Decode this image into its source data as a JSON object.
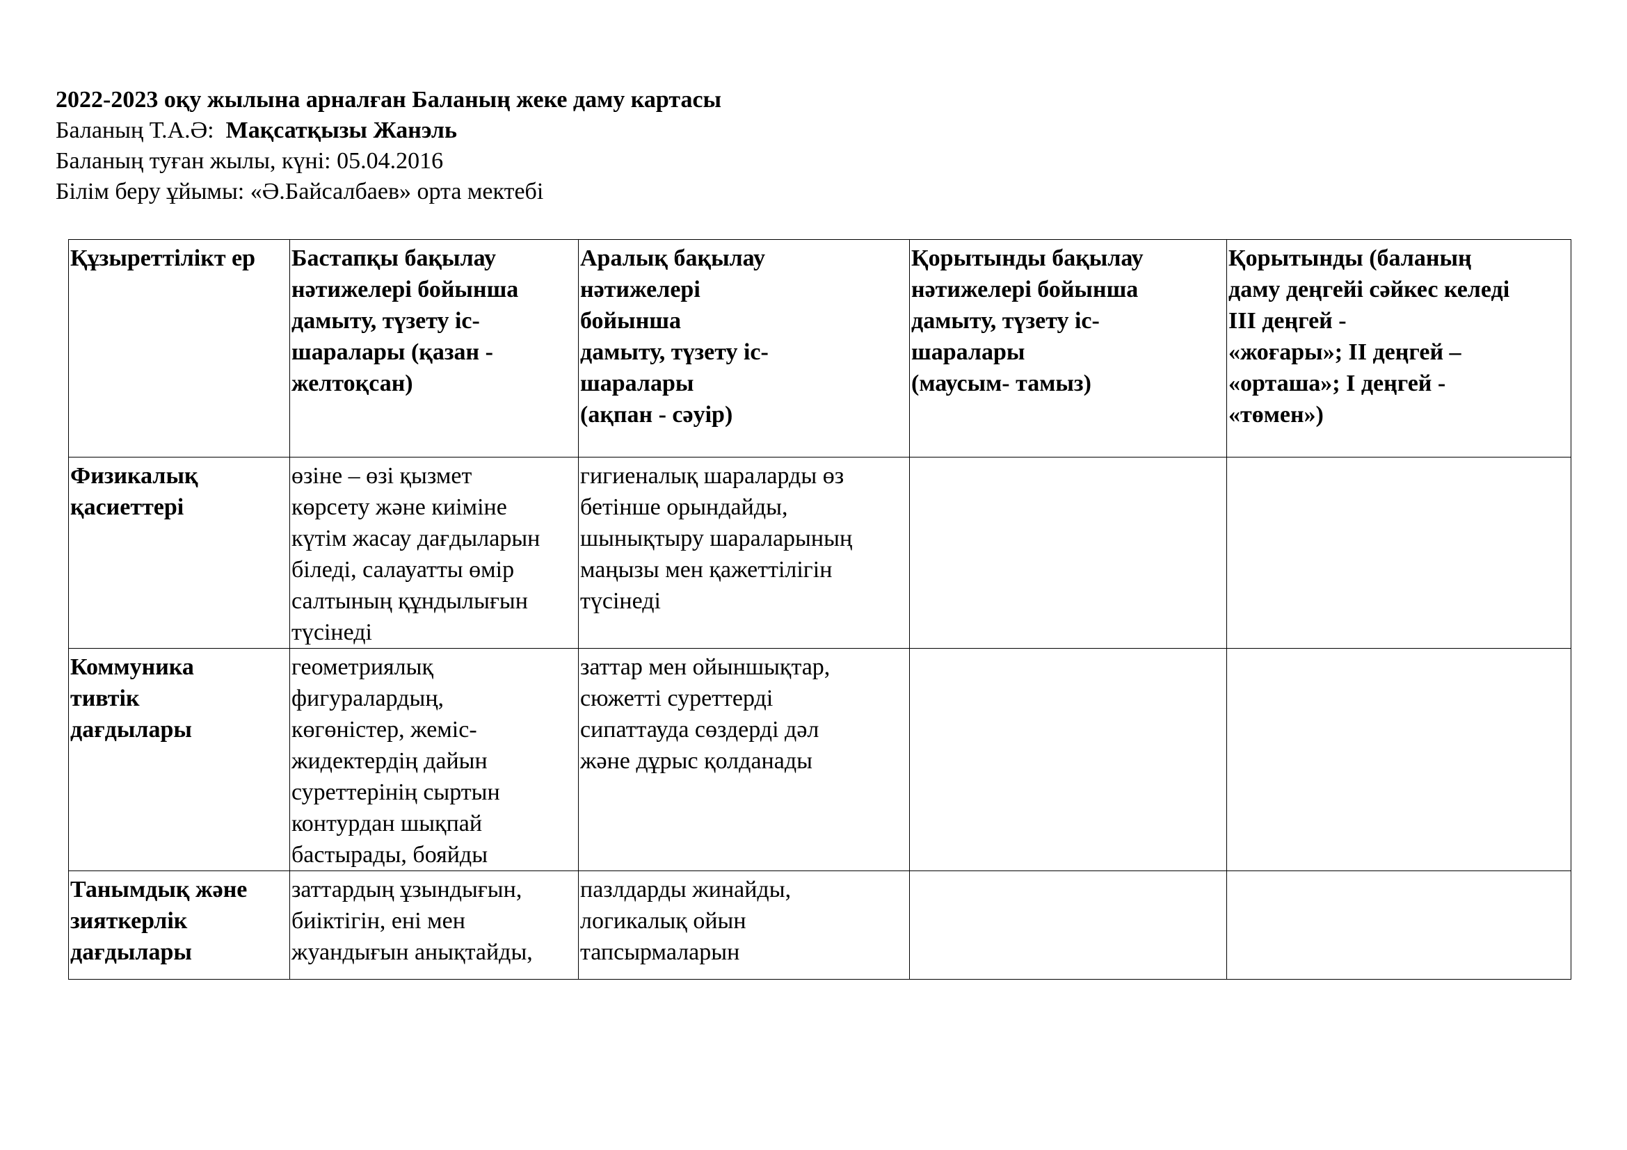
{
  "header": {
    "title": "2022-2023 оқу жылына арналған Баланың жеке даму картасы",
    "name_label": "Баланың Т.А.Ә:",
    "name_value": "Мақсатқызы Жанэль",
    "birth": "Баланың туған жылы, күні: 05.04.2016",
    "organization": "Білім беру ұйымы: «Ә.Байсалбаев» орта мектебі"
  },
  "table": {
    "columns": [
      [
        "Құзыреттілікт ер"
      ],
      [
        "Бастапқы бақылау",
        "нәтижелері бойынша",
        "дамыту, түзету іс-",
        "шаралары (қазан -",
        "желтоқсан)"
      ],
      [
        "Аралық бақылау",
        "нәтижелері",
        "бойынша",
        "дамыту, түзету іс-",
        "шаралары",
        "(ақпан - сәуір)"
      ],
      [
        "Қорытынды бақылау",
        "нәтижелері бойынша",
        "дамыту, түзету іс-",
        "шаралары",
        "(маусым- тамыз)"
      ],
      [
        "Қорытынды (баланың",
        "даму деңгейі сәйкес келеді",
        "ІІІ деңгей -",
        "«жоғары»;  ІІ деңгей –",
        "«орташа»;   І деңгей -",
        "«төмен»)"
      ]
    ],
    "rows": [
      [
        [
          "Физикалық",
          "қасиеттері"
        ],
        [
          "өзіне – өзі қызмет",
          "көрсету және киіміне",
          "күтім жасау дағдыларын",
          "біледі, салауатты өмір",
          "салтының құндылығын",
          "түсінеді"
        ],
        [
          "гигиеналық шараларды өз",
          "бетінше орындайды,",
          "шынықтыру шараларының",
          "маңызы мен қажеттілігін",
          "түсінеді"
        ],
        [],
        []
      ],
      [
        [
          "Коммуника",
          "тивтік",
          "дағдылары"
        ],
        [
          "геометриялық",
          "фигуралардың,",
          "көгөністер, жеміс-",
          "жидектердің дайын",
          "суреттерінің сыртын",
          "контурдан шықпай",
          "бастырады, бояйды"
        ],
        [
          "заттар мен ойыншықтар,",
          "сюжетті суреттерді",
          "сипаттауда сөздерді дәл",
          "және дұрыс қолданады"
        ],
        [],
        []
      ],
      [
        [
          "Танымдық және",
          "зияткерлік",
          "дағдылары"
        ],
        [
          "заттардың ұзындығын,",
          "биіктігін, ені мен",
          "жуандығын анықтайды,"
        ],
        [
          "пазлдарды жинайды,",
          "логикалық ойын",
          "тапсырмаларын"
        ],
        [],
        []
      ]
    ]
  }
}
